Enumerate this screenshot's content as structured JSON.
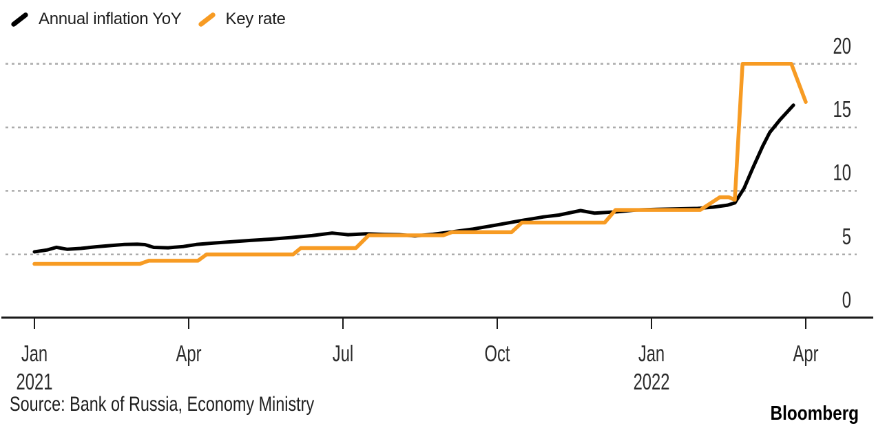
{
  "legend": {
    "series": [
      {
        "label": "Annual inflation YoY",
        "color": "#000000"
      },
      {
        "label": "Key rate",
        "color": "#F79B23"
      }
    ]
  },
  "footer": {
    "source": "Source: Bank of Russia, Economy Ministry",
    "brand": "Bloomberg"
  },
  "chart_data": {
    "type": "line",
    "title": "",
    "xlabel": "",
    "ylabel": "",
    "x_unit": "months since Jan 2021",
    "x_range": [
      "Jan 2021",
      "mid-Apr 2022"
    ],
    "ylim": [
      0,
      20
    ],
    "grid": "horizontal-dashed",
    "legend_position": "top-left",
    "y_ticks": [
      0,
      5,
      10,
      15,
      20
    ],
    "x_ticks": [
      {
        "m": 0,
        "month": "Jan",
        "year": "2021"
      },
      {
        "m": 3,
        "month": "Apr"
      },
      {
        "m": 6,
        "month": "Jul"
      },
      {
        "m": 9,
        "month": "Oct"
      },
      {
        "m": 12,
        "month": "Jan",
        "year": "2022"
      },
      {
        "m": 15,
        "month": "Apr"
      }
    ],
    "series": [
      {
        "name": "Annual inflation YoY",
        "color": "#000000",
        "unit": "%",
        "points": [
          [
            0.0,
            5.2
          ],
          [
            0.25,
            5.35
          ],
          [
            0.43,
            5.56
          ],
          [
            0.64,
            5.4
          ],
          [
            0.9,
            5.47
          ],
          [
            1.2,
            5.6
          ],
          [
            1.5,
            5.7
          ],
          [
            1.75,
            5.78
          ],
          [
            2.0,
            5.8
          ],
          [
            2.15,
            5.77
          ],
          [
            2.32,
            5.55
          ],
          [
            2.6,
            5.52
          ],
          [
            2.9,
            5.62
          ],
          [
            3.15,
            5.78
          ],
          [
            3.5,
            5.9
          ],
          [
            3.85,
            6.0
          ],
          [
            4.2,
            6.1
          ],
          [
            4.6,
            6.2
          ],
          [
            5.0,
            6.33
          ],
          [
            5.4,
            6.48
          ],
          [
            5.79,
            6.68
          ],
          [
            6.1,
            6.55
          ],
          [
            6.45,
            6.62
          ],
          [
            6.8,
            6.57
          ],
          [
            7.1,
            6.55
          ],
          [
            7.4,
            6.45
          ],
          [
            7.75,
            6.58
          ],
          [
            8.08,
            6.75
          ],
          [
            8.53,
            7.0
          ],
          [
            8.97,
            7.3
          ],
          [
            9.41,
            7.62
          ],
          [
            9.9,
            7.95
          ],
          [
            10.2,
            8.1
          ],
          [
            10.62,
            8.45
          ],
          [
            10.89,
            8.25
          ],
          [
            11.34,
            8.35
          ],
          [
            11.7,
            8.5
          ],
          [
            12.1,
            8.55
          ],
          [
            12.5,
            8.58
          ],
          [
            12.9,
            8.62
          ],
          [
            13.2,
            8.72
          ],
          [
            13.48,
            8.88
          ],
          [
            13.62,
            9.05
          ],
          [
            13.8,
            10.2
          ],
          [
            13.97,
            11.8
          ],
          [
            14.16,
            13.5
          ],
          [
            14.3,
            14.6
          ],
          [
            14.5,
            15.6
          ],
          [
            14.76,
            16.75
          ]
        ]
      },
      {
        "name": "Key rate",
        "color": "#F79B23",
        "unit": "%",
        "step_levels": [
          4.25,
          4.5,
          5.0,
          5.5,
          6.5,
          6.75,
          7.5,
          8.5,
          9.5,
          20.0,
          17.0
        ],
        "points": [
          [
            0.0,
            4.25
          ],
          [
            2.05,
            4.25
          ],
          [
            2.22,
            4.5
          ],
          [
            3.18,
            4.5
          ],
          [
            3.35,
            5.0
          ],
          [
            5.03,
            5.0
          ],
          [
            5.18,
            5.5
          ],
          [
            6.25,
            5.5
          ],
          [
            6.5,
            6.5
          ],
          [
            7.95,
            6.5
          ],
          [
            8.12,
            6.75
          ],
          [
            9.28,
            6.75
          ],
          [
            9.48,
            7.5
          ],
          [
            11.09,
            7.5
          ],
          [
            11.3,
            8.5
          ],
          [
            12.95,
            8.5
          ],
          [
            13.33,
            9.5
          ],
          [
            13.5,
            9.5
          ],
          [
            13.62,
            9.3
          ],
          [
            13.77,
            20.0
          ],
          [
            14.72,
            20.0
          ],
          [
            15.0,
            17.0
          ]
        ]
      }
    ]
  }
}
